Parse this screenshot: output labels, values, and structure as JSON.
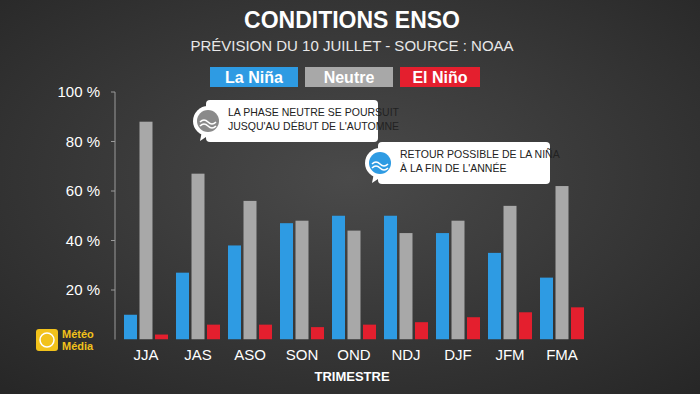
{
  "chart_data": {
    "type": "bar",
    "title": "CONDITIONS ENSO",
    "subtitle": "PRÉVISION DU 10 JUILLET - SOURCE : NOAA",
    "x_label": "TRIMESTRE",
    "categories": [
      "JJA",
      "JAS",
      "ASO",
      "SON",
      "OND",
      "NDJ",
      "DJF",
      "JFM",
      "FMA"
    ],
    "series": [
      {
        "name": "La Niña",
        "color": "#2e9be3",
        "values": [
          10,
          27,
          38,
          47,
          50,
          50,
          43,
          35,
          25
        ]
      },
      {
        "name": "Neutre",
        "color": "#a8a8a8",
        "values": [
          88,
          67,
          56,
          48,
          44,
          43,
          48,
          54,
          62
        ]
      },
      {
        "name": "El Niño",
        "color": "#e41f2e",
        "values": [
          2,
          6,
          6,
          5,
          6,
          7,
          9,
          11,
          13
        ]
      }
    ],
    "ylim": [
      0,
      100
    ],
    "yticks": [
      {
        "value": 20,
        "label": "20 %"
      },
      {
        "value": 40,
        "label": "40 %"
      },
      {
        "value": 60,
        "label": "60 %"
      },
      {
        "value": 80,
        "label": "80 %"
      },
      {
        "value": 100,
        "label": "100 %"
      }
    ],
    "grid": false,
    "legend": "top",
    "annotations": [
      {
        "lines": [
          "LA PHASE NEUTRE SE POURSUIT",
          "JUSQU'AU DÉBUT DE L'AUTOMNE"
        ]
      },
      {
        "lines": [
          "RETOUR POSSIBLE DE LA NIÑA",
          "À LA FIN DE L'ANNÉE"
        ]
      }
    ],
    "source_logo": [
      "Météo",
      "Média"
    ]
  }
}
